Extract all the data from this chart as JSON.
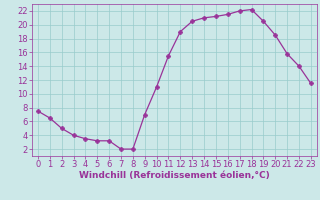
{
  "x": [
    0,
    1,
    2,
    3,
    4,
    5,
    6,
    7,
    8,
    9,
    10,
    11,
    12,
    13,
    14,
    15,
    16,
    17,
    18,
    19,
    20,
    21,
    22,
    23
  ],
  "y": [
    7.5,
    6.5,
    5.0,
    4.0,
    3.5,
    3.2,
    3.2,
    2.0,
    2.0,
    7.0,
    11.0,
    15.5,
    19.0,
    20.5,
    21.0,
    21.2,
    21.5,
    22.0,
    22.2,
    20.5,
    18.5,
    15.8,
    14.0,
    11.5
  ],
  "bg_color": "#cce8e8",
  "line_color": "#993399",
  "marker": "P",
  "xlabel": "Windchill (Refroidissement éolien,°C)",
  "xlabel_fontsize": 6.5,
  "ylim": [
    1,
    23
  ],
  "xlim": [
    -0.5,
    23.5
  ],
  "yticks": [
    2,
    4,
    6,
    8,
    10,
    12,
    14,
    16,
    18,
    20,
    22
  ],
  "xticks": [
    0,
    1,
    2,
    3,
    4,
    5,
    6,
    7,
    8,
    9,
    10,
    11,
    12,
    13,
    14,
    15,
    16,
    17,
    18,
    19,
    20,
    21,
    22,
    23
  ],
  "grid_color": "#99cccc",
  "tick_color": "#993399",
  "tick_fontsize": 6.0,
  "linewidth": 0.9,
  "markersize": 3.0
}
